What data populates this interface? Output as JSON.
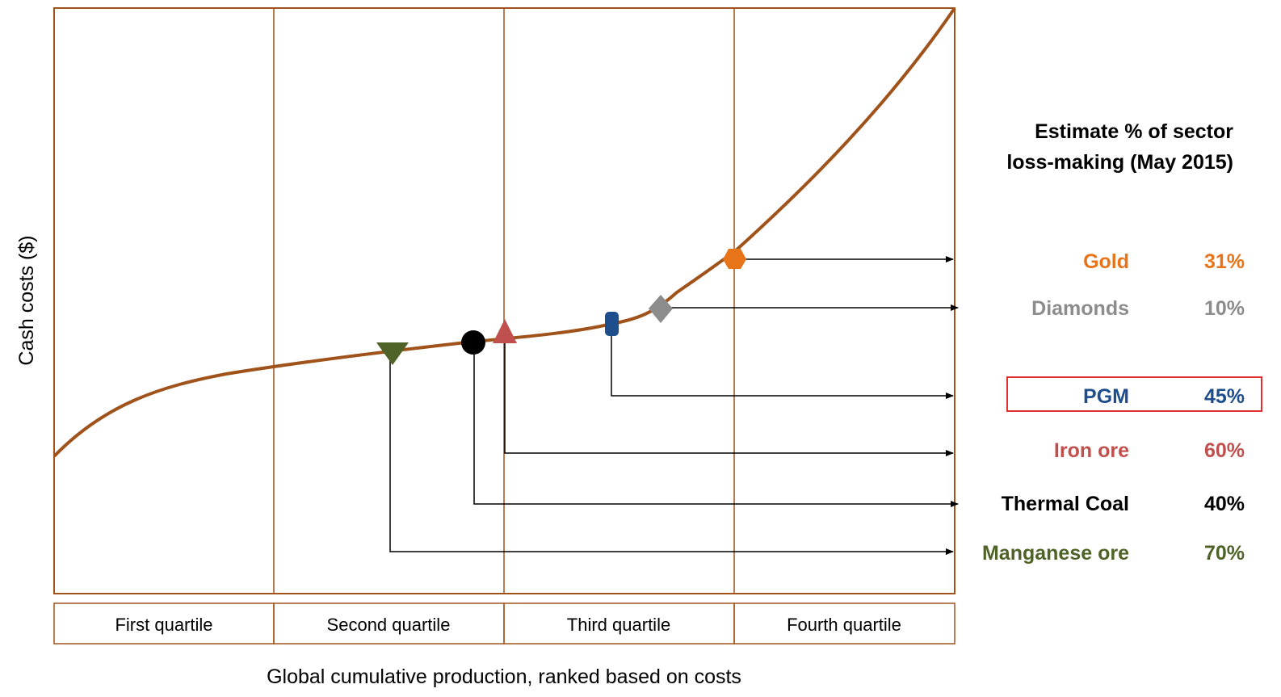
{
  "chart_data": {
    "type": "line",
    "ylabel": "Cash costs ($)",
    "xlabel": "Global cumulative production, ranked based on costs",
    "quartiles": [
      "First quartile",
      "Second quartile",
      "Third quartile",
      "Fourth quartile"
    ],
    "legend_title_line1": "Estimate % of sector",
    "legend_title_line2": "loss-making (May 2015)",
    "curve_color": "#a0521b",
    "commodities": [
      {
        "name": "Gold",
        "value": "31%",
        "color": "#e8741a",
        "marker": "hexagon"
      },
      {
        "name": "Diamonds",
        "value": "10%",
        "color": "#8c8c8c",
        "marker": "diamond"
      },
      {
        "name": "PGM",
        "value": "45%",
        "color": "#1f4e8c",
        "marker": "rounded-rect",
        "highlighted": true
      },
      {
        "name": "Iron ore",
        "value": "60%",
        "color": "#c0504d",
        "marker": "triangle-up"
      },
      {
        "name": "Thermal Coal",
        "value": "40%",
        "color": "#000000",
        "marker": "circle"
      },
      {
        "name": "Manganese ore",
        "value": "70%",
        "color": "#4f6228",
        "marker": "triangle-down"
      }
    ]
  }
}
